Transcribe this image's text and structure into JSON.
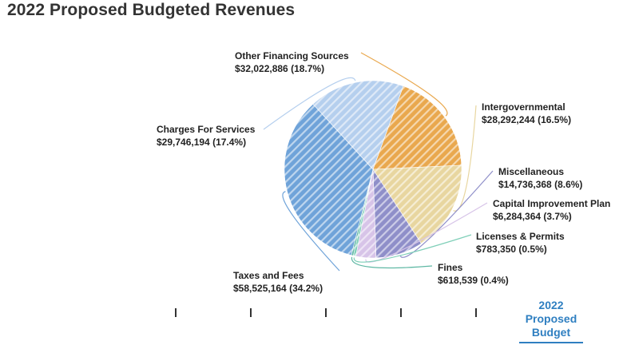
{
  "page": {
    "title": "2022 Proposed Budgeted Revenues"
  },
  "timeline": {
    "selected_label": "2022 Proposed Budget",
    "tick_count": 5
  },
  "chart_data": {
    "type": "pie",
    "title": "2022 Proposed Budgeted Revenues",
    "slices": [
      {
        "name": "Other Financing Sources",
        "value": 32022886,
        "value_label": "$32,022,886 (18.7%)",
        "color": "#e9a84e"
      },
      {
        "name": "Intergovernmental",
        "value": 28292244,
        "value_label": "$28,292,244 (16.5%)",
        "color": "#e8d6a0"
      },
      {
        "name": "Miscellaneous",
        "value": 14736368,
        "value_label": "$14,736,368 (8.6%)",
        "color": "#8f8fc9"
      },
      {
        "name": "Capital Improvement Plan",
        "value": 6284364,
        "value_label": "$6,284,364 (3.7%)",
        "color": "#d7c4e8"
      },
      {
        "name": "Licenses & Permits",
        "value": 783350,
        "value_label": "$783,350 (0.5%)",
        "color": "#7fcfb8"
      },
      {
        "name": "Fines",
        "value": 618539,
        "value_label": "$618,539 (0.4%)",
        "color": "#5fb8a4"
      },
      {
        "name": "Taxes and Fees",
        "value": 58525164,
        "value_label": "$58,525,164 (34.2%)",
        "color": "#6fa3d9"
      },
      {
        "name": "Charges For Services",
        "value": 29746194,
        "value_label": "$29,746,194 (17.4%)",
        "color": "#b5cfee"
      }
    ],
    "legend": "none"
  }
}
